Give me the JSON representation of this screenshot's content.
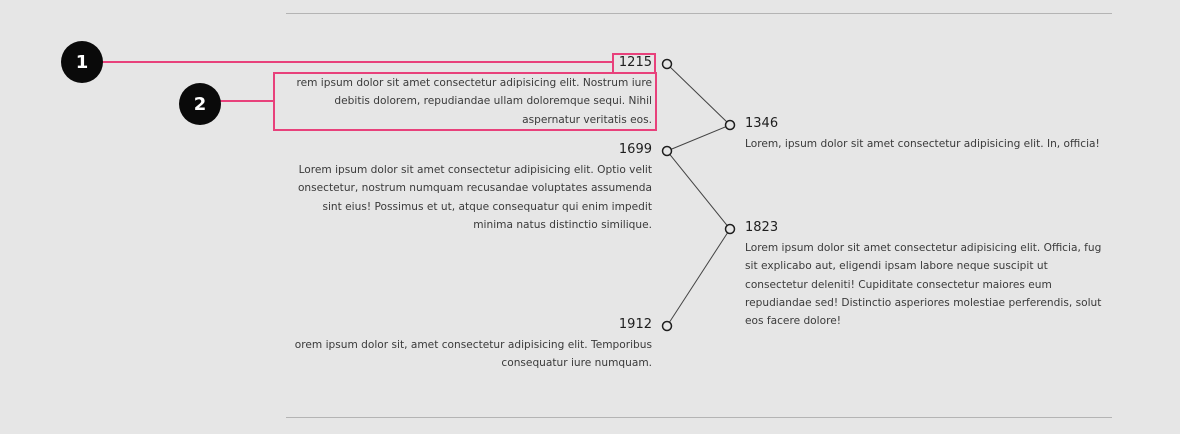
{
  "colors": {
    "background": "#e6e6e6",
    "highlight": "#e8417b",
    "marker": "#0a0a0a",
    "text": "#2b2b2b",
    "line": "#444444"
  },
  "callouts": [
    {
      "number": "1",
      "target": "year-label"
    },
    {
      "number": "2",
      "target": "description-text"
    }
  ],
  "timeline": {
    "left": [
      {
        "year": "1215",
        "lines": [
          "rem ipsum dolor sit amet consectetur adipisicing elit. Nostrum iure",
          "debitis dolorem, repudiandae ullam doloremque sequi. Nihil",
          "aspernatur veritatis eos."
        ]
      },
      {
        "year": "1699",
        "lines": [
          "Lorem ipsum dolor sit amet consectetur adipisicing elit. Optio velit",
          "onsectetur, nostrum numquam recusandae voluptates assumenda",
          "sint eius! Possimus et ut, atque consequatur qui enim impedit",
          "minima natus distinctio similique."
        ]
      },
      {
        "year": "1912",
        "lines": [
          "orem ipsum dolor sit, amet consectetur adipisicing elit. Temporibus",
          "consequatur iure numquam."
        ]
      }
    ],
    "right": [
      {
        "year": "1346",
        "lines": [
          "Lorem, ipsum dolor sit amet consectetur adipisicing elit. In, officia!"
        ]
      },
      {
        "year": "1823",
        "lines": [
          "Lorem ipsum dolor sit amet consectetur adipisicing elit. Officia, fug",
          "sit explicabo aut, eligendi ipsam labore neque suscipit ut",
          "consectetur deleniti! Cupiditate consectetur maiores eum",
          "repudiandae sed! Distinctio asperiores molestiae perferendis, solut",
          "eos facere dolore!"
        ]
      }
    ]
  }
}
